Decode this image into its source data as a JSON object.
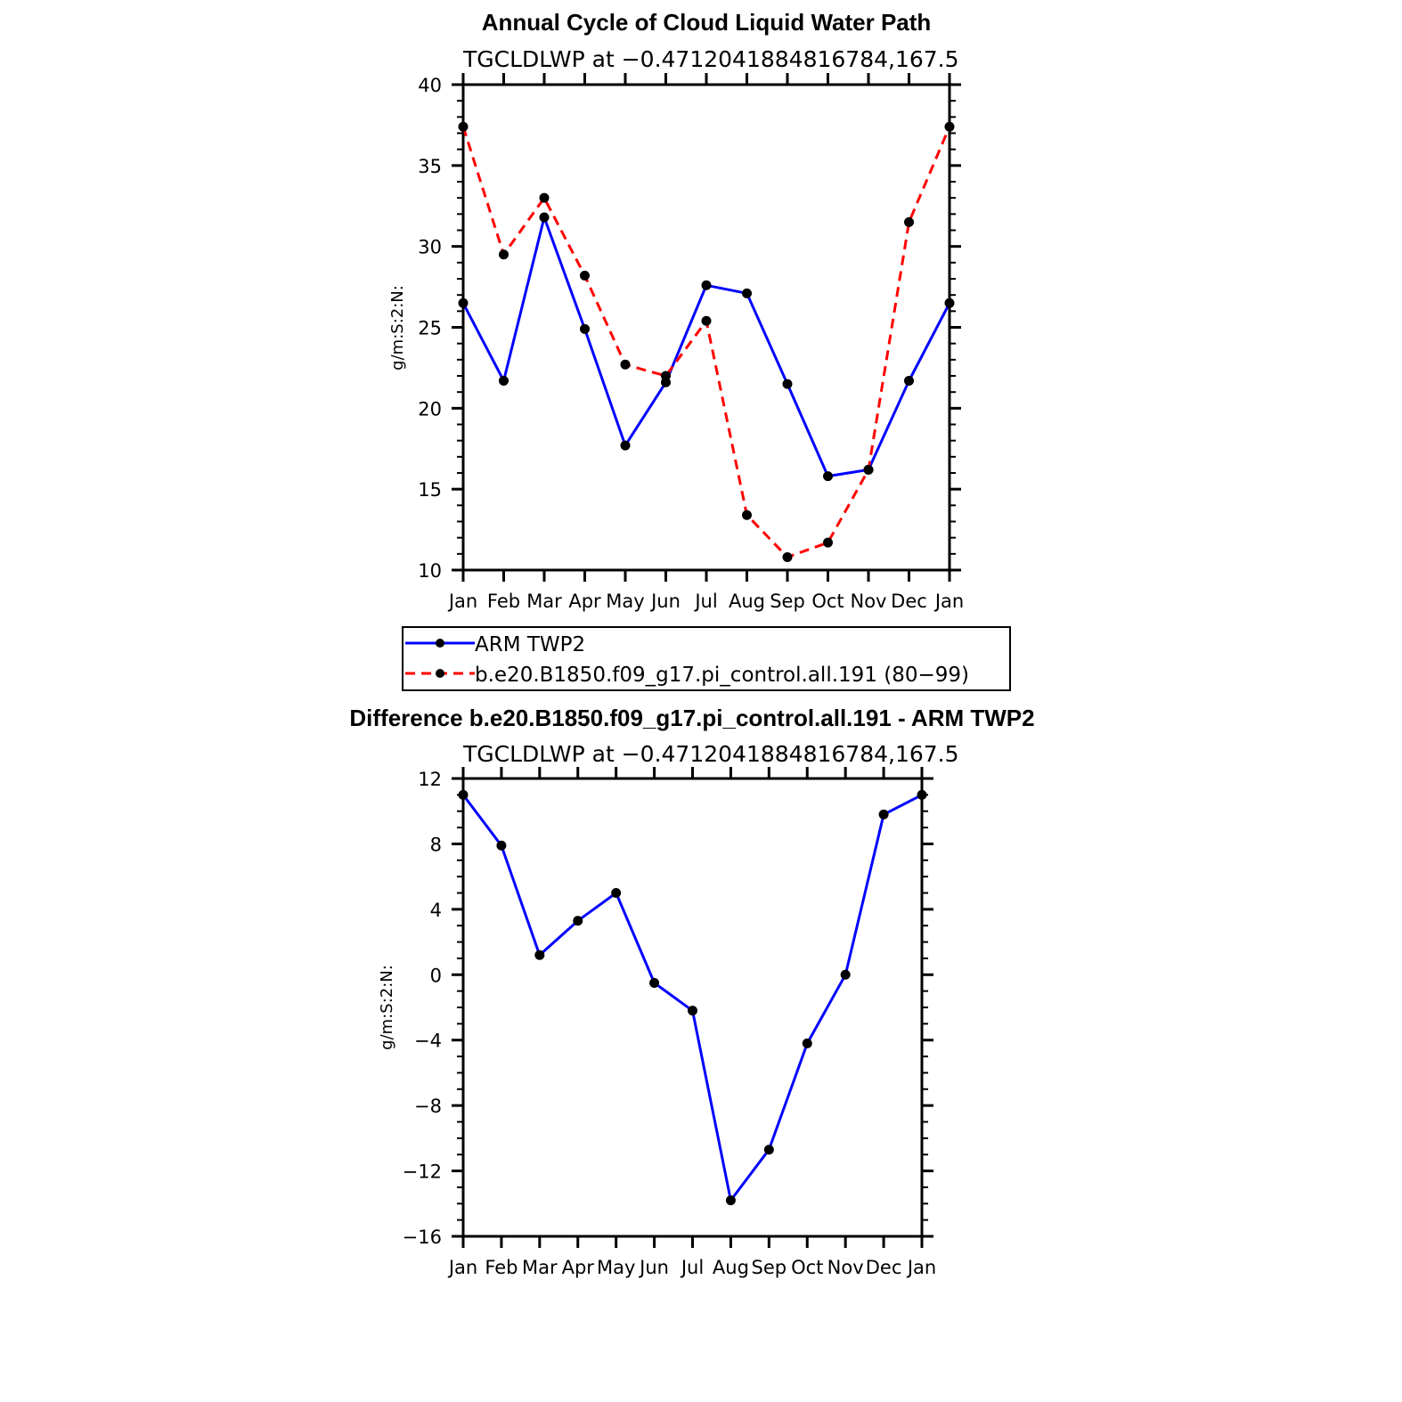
{
  "chart_data": [
    {
      "type": "line",
      "title": "Annual Cycle of Cloud Liquid Water Path",
      "subtitle": "TGCLDLWP at −0.4712041884816784,167.5",
      "xlabel": "",
      "ylabel": "g/m:S:2:N:",
      "categories": [
        "Jan",
        "Feb",
        "Mar",
        "Apr",
        "May",
        "Jun",
        "Jul",
        "Aug",
        "Sep",
        "Oct",
        "Nov",
        "Dec",
        "Jan"
      ],
      "ylim": [
        10,
        40
      ],
      "y_ticks": [
        10,
        15,
        20,
        25,
        30,
        35,
        40
      ],
      "y_tick_labels": [
        "10",
        "15",
        "20",
        "25",
        "30",
        "35",
        "40"
      ],
      "grid": false,
      "legend_position": "bottom",
      "series": [
        {
          "name": "ARM TWP2",
          "color": "#0000ff",
          "dash": "solid",
          "values": [
            26.5,
            21.7,
            31.8,
            24.9,
            17.7,
            21.6,
            27.6,
            27.1,
            21.5,
            15.8,
            16.2,
            21.7,
            26.5
          ]
        },
        {
          "name": "b.e20.B1850.f09_g17.pi_control.all.191 (80−99)",
          "color": "#ff0000",
          "dash": "dashed",
          "values": [
            37.4,
            29.5,
            33.0,
            28.2,
            22.7,
            22.0,
            25.4,
            13.4,
            10.8,
            11.7,
            16.2,
            31.5,
            37.4
          ]
        }
      ]
    },
    {
      "type": "line",
      "title": "Difference b.e20.B1850.f09_g17.pi_control.all.191 - ARM TWP2",
      "subtitle": "TGCLDLWP at −0.4712041884816784,167.5",
      "xlabel": "",
      "ylabel": "g/m:S:2:N:",
      "categories": [
        "Jan",
        "Feb",
        "Mar",
        "Apr",
        "May",
        "Jun",
        "Jul",
        "Aug",
        "Sep",
        "Oct",
        "Nov",
        "Dec",
        "Jan"
      ],
      "ylim": [
        -16,
        12
      ],
      "y_ticks": [
        -16,
        -12,
        -8,
        -4,
        0,
        4,
        8,
        12
      ],
      "y_tick_labels": [
        "−16",
        "−12",
        "−8",
        "−4",
        "0",
        "4",
        "8",
        "12"
      ],
      "grid": false,
      "series": [
        {
          "color": "#0000ff",
          "dash": "solid",
          "values": [
            11.0,
            7.9,
            1.2,
            3.3,
            5.0,
            -0.5,
            -2.2,
            -13.8,
            -10.7,
            -4.2,
            0.0,
            9.8,
            11.0
          ]
        }
      ]
    }
  ]
}
